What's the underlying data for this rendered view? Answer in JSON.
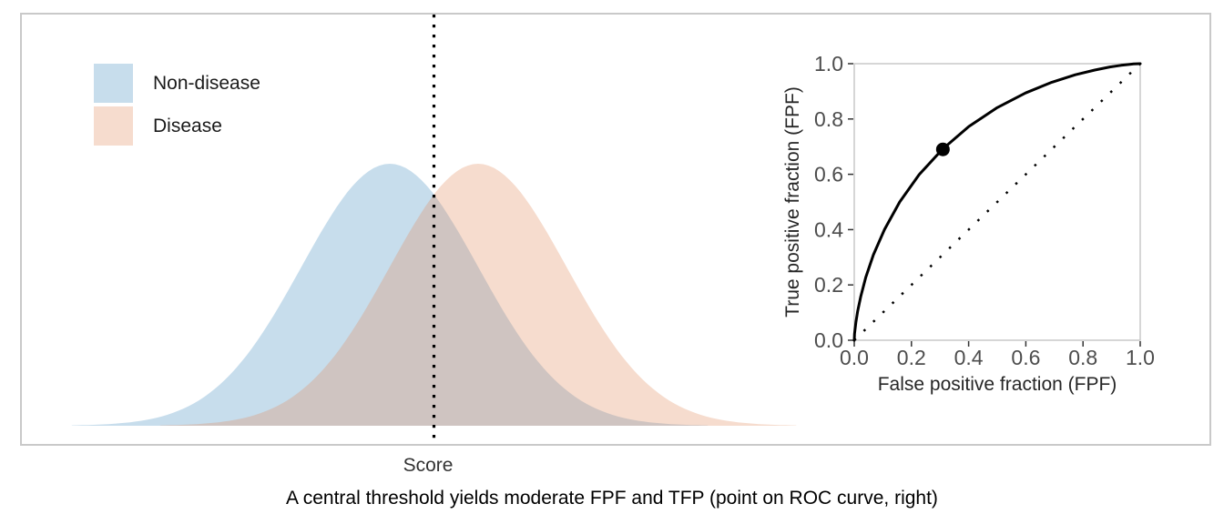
{
  "caption": "A central threshold yields moderate FPF and TFP (point on ROC curve, right)",
  "chart_data": [
    {
      "type": "area",
      "title": "",
      "xlabel": "Score",
      "ylabel": "",
      "legend": [
        {
          "label": "Non-disease",
          "color": "#4790c0"
        },
        {
          "label": "Disease",
          "color": "#e08a5c"
        }
      ],
      "legend_position": "top-left",
      "fill_opacity": 0.3,
      "series": [
        {
          "name": "Non-disease",
          "distribution": "normal",
          "mean": -0.5,
          "sd": 1.0,
          "color": "#4790c0"
        },
        {
          "name": "Disease",
          "distribution": "normal",
          "mean": 0.5,
          "sd": 1.0,
          "color": "#e08a5c"
        }
      ],
      "clip_sd": 3.6,
      "threshold_line": {
        "x": 0.0,
        "style": "dotted",
        "color": "#000000"
      },
      "x_range": [
        -4.1,
        4.1
      ],
      "grid": false
    },
    {
      "type": "line",
      "title": "",
      "xlabel": "False positive fraction (FPF)",
      "ylabel": "True positive fraction (FPF)",
      "xlim": [
        0.0,
        1.0
      ],
      "ylim": [
        0.0,
        1.0
      ],
      "x_ticks": [
        0.0,
        0.2,
        0.4,
        0.6,
        0.8,
        1.0
      ],
      "y_ticks": [
        0.0,
        0.2,
        0.4,
        0.6,
        0.8,
        1.0
      ],
      "grid": false,
      "legend_position": "none",
      "roc_curve_points": [
        [
          0.0,
          0.0
        ],
        [
          0.0002,
          0.006
        ],
        [
          0.001,
          0.023
        ],
        [
          0.003,
          0.04
        ],
        [
          0.006,
          0.067
        ],
        [
          0.012,
          0.106
        ],
        [
          0.023,
          0.159
        ],
        [
          0.04,
          0.227
        ],
        [
          0.067,
          0.309
        ],
        [
          0.106,
          0.401
        ],
        [
          0.159,
          0.5
        ],
        [
          0.227,
          0.599
        ],
        [
          0.309,
          0.691
        ],
        [
          0.401,
          0.773
        ],
        [
          0.5,
          0.841
        ],
        [
          0.599,
          0.894
        ],
        [
          0.691,
          0.933
        ],
        [
          0.773,
          0.96
        ],
        [
          0.841,
          0.977
        ],
        [
          0.894,
          0.988
        ],
        [
          0.933,
          0.994
        ],
        [
          0.96,
          0.997
        ],
        [
          0.977,
          0.999
        ],
        [
          1.0,
          1.0
        ]
      ],
      "chance_line": {
        "style": "dotted",
        "from": [
          0.0,
          0.0
        ],
        "to": [
          1.0,
          1.0
        ]
      },
      "operating_point": {
        "fpf": 0.31,
        "tpf": 0.69
      },
      "curve_color": "#000000",
      "point_color": "#000000"
    }
  ],
  "colors": {
    "panel_border": "#c9c9c9",
    "tick_mark": "#333333",
    "tick_label": "#4d4d4d",
    "background": "#ffffff"
  }
}
